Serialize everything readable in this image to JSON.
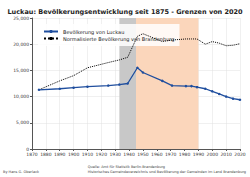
{
  "chart_data": {
    "type": "line",
    "title": "Luckau: Bevölkerungsentwicklung seit 1875 - Grenzen von 2020",
    "x": [
      1875,
      1890,
      1900,
      1910,
      1925,
      1933,
      1939,
      1946,
      1950,
      1964,
      1971,
      1981,
      1985,
      1989,
      1995,
      2000,
      2005,
      2010,
      2015,
      2020
    ],
    "series": [
      {
        "name": "Bevölkerung von Luckau",
        "color": "#1f4e9e",
        "marker": "circle",
        "line_style": "solid",
        "values": [
          11300,
          11500,
          11700,
          11900,
          12100,
          12300,
          12500,
          15500,
          14600,
          13000,
          12100,
          12000,
          12000,
          11800,
          11500,
          11000,
          10500,
          10000,
          9600,
          9400
        ]
      },
      {
        "name": "Normalisierte Bevölkerung von Brandenburg",
        "color": "#000000",
        "marker": "none",
        "line_style": "dotted",
        "values": [
          11300,
          13000,
          14000,
          15500,
          16500,
          17000,
          17500,
          21500,
          22000,
          20500,
          20800,
          21000,
          21000,
          21000,
          20000,
          20500,
          20200,
          19700,
          19800,
          20100
        ]
      }
    ],
    "xlim": [
      1870,
      2020
    ],
    "xticks": [
      1870,
      1880,
      1890,
      1900,
      1910,
      1920,
      1930,
      1940,
      1950,
      1960,
      1970,
      1980,
      1990,
      2000,
      2010,
      2020
    ],
    "ylim": [
      0,
      25000
    ],
    "yticks": [
      0,
      {
        "value": 5000,
        "label": "5,000"
      },
      {
        "value": 10000,
        "label": "10,000"
      },
      {
        "value": 15000,
        "label": "15,000"
      },
      {
        "value": 20000,
        "label": "20,000"
      },
      {
        "value": 25000,
        "label": "25,000"
      }
    ],
    "grid": true,
    "legend": "upper left",
    "periods": [
      {
        "from": 1933,
        "to": 1945,
        "color": "#c8c8c8"
      },
      {
        "from": 1945,
        "to": 1990,
        "color": "#fbd6bb"
      }
    ],
    "credit": "By Hans G. Oberlack",
    "source": [
      "Quelle: Amt für Statistik Berlin-Brandenburg",
      "Historisches Gemeindeverzeichnis und Bevölkerung der Gemeinden im Land Brandenburg"
    ]
  }
}
